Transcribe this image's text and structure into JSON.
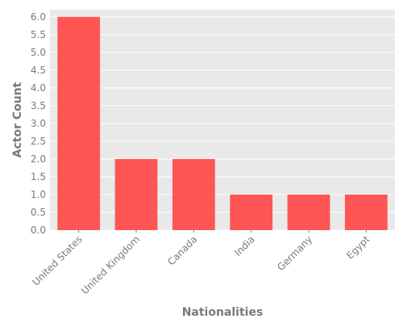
{
  "chart_data": {
    "type": "bar",
    "title": "",
    "xlabel": "Nationalities",
    "ylabel": "Actor Count",
    "categories": [
      "United States",
      "United Kingdom",
      "Canada",
      "India",
      "Germany",
      "Egypt"
    ],
    "values": [
      6,
      2,
      2,
      1,
      1,
      1
    ],
    "ylim": [
      0,
      6.2
    ],
    "yticks": [
      "0.0",
      "0.5",
      "1.0",
      "1.5",
      "2.0",
      "2.5",
      "3.0",
      "3.5",
      "4.0",
      "4.5",
      "5.0",
      "5.5",
      "6.0"
    ],
    "grid": true,
    "legend": "none",
    "colors": {
      "bar": "#ff5555",
      "plot_background": "#e9e9e9",
      "gridline": "#ffffff",
      "text": "#7a7a7a"
    }
  }
}
